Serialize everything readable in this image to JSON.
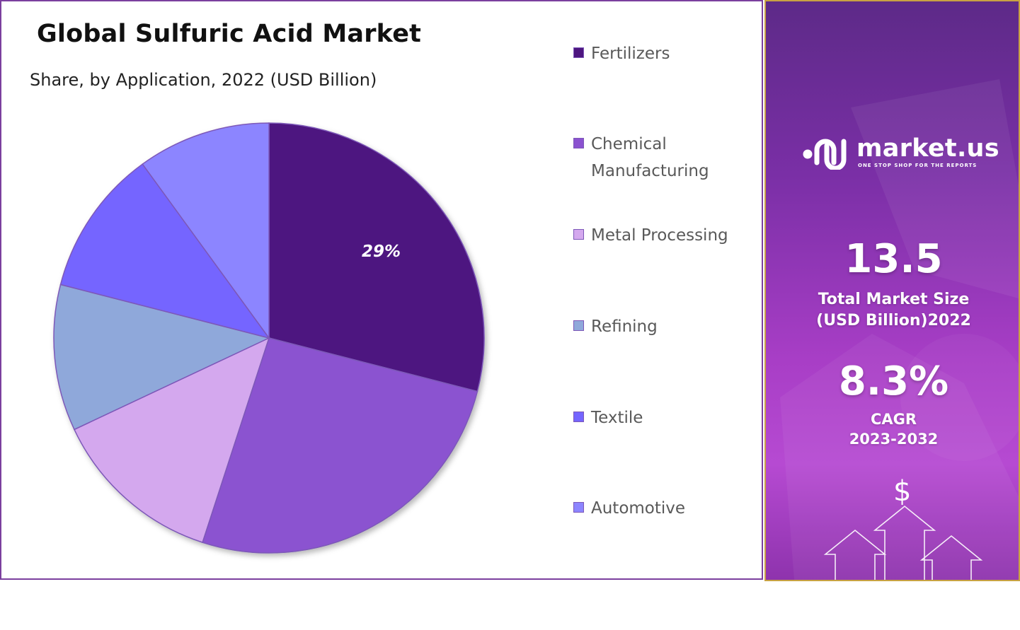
{
  "chart_data": {
    "type": "pie",
    "title": "Global Sulfuric Acid Market",
    "subtitle": "Share, by Application, 2022 (USD Billion)",
    "categories": [
      "Fertilizers",
      "Chemical Manufacturing",
      "Metal Processing",
      "Refining",
      "Textile",
      "Automotive"
    ],
    "values": [
      29,
      26,
      13,
      11,
      11,
      10
    ],
    "colors": [
      "#4e1680",
      "#8b52d0",
      "#d4a8ee",
      "#8fa8da",
      "#7465ff",
      "#8c85ff"
    ],
    "data_labels": [
      "29%",
      "",
      "",
      "",
      "",
      ""
    ],
    "legend_position": "right"
  },
  "legend": {
    "items": [
      {
        "label": "Fertilizers",
        "color": "#4e1680"
      },
      {
        "label": "Chemical Manufacturing",
        "color": "#8b52d0"
      },
      {
        "label": "Metal Processing",
        "color": "#d4a8ee"
      },
      {
        "label": "Refining",
        "color": "#8fa8da"
      },
      {
        "label": "Textile",
        "color": "#7465ff"
      },
      {
        "label": "Automotive",
        "color": "#8c85ff"
      }
    ]
  },
  "side_panel": {
    "brand": "market.us",
    "tagline": "ONE STOP SHOP FOR THE REPORTS",
    "market_size": "13.5",
    "market_size_label_line1": "Total Market Size",
    "market_size_label_line2": "(USD Billion)2022",
    "cagr": "8.3%",
    "cagr_label_line1": "CAGR",
    "cagr_label_line2": "2023-2032",
    "dollar_symbol": "$"
  }
}
